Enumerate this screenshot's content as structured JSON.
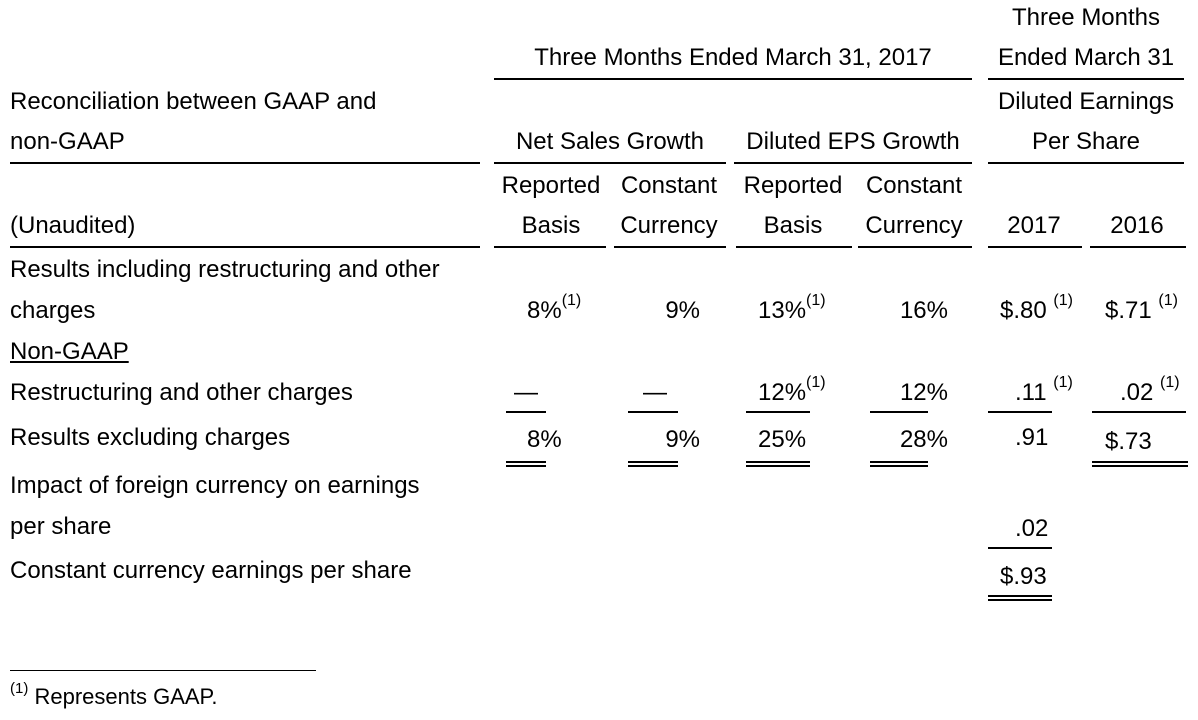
{
  "header": {
    "three_months_ended_2017": "Three Months Ended March 31, 2017",
    "three_months_line1": "Three Months",
    "three_months_line2": "Ended March 31",
    "title_line1": "Reconciliation between GAAP and",
    "title_line2": "non-GAAP",
    "net_sales_growth": "Net Sales Growth",
    "diluted_eps_growth": "Diluted EPS Growth",
    "diluted_eps_line1": "Diluted Earnings",
    "diluted_eps_line2": "Per Share",
    "unaudited": "(Unaudited)",
    "reported_line1": "Reported",
    "reported_line2": "Basis",
    "constant_line1": "Constant",
    "constant_line2": "Currency",
    "year_2017": "2017",
    "year_2016": "2016"
  },
  "rows": {
    "incl_label_line1": "Results including restructuring and other",
    "incl_label_line2": "charges",
    "incl_ns_reported": "8%",
    "incl_ns_constant": "9%",
    "incl_eps_reported": "13%",
    "incl_eps_constant": "16%",
    "incl_2017": "$.80",
    "incl_2016": "$.71",
    "non_gaap_label": "Non-GAAP",
    "restr_label": "Restructuring and other charges",
    "restr_ns_reported": "—",
    "restr_ns_constant": "—",
    "restr_eps_reported": "12%",
    "restr_eps_constant": "12%",
    "restr_2017": ".11",
    "restr_2016": ".02",
    "excl_label": "Results excluding charges",
    "excl_ns_reported": "8%",
    "excl_ns_constant": "9%",
    "excl_eps_reported": "25%",
    "excl_eps_constant": "28%",
    "excl_2017": ".91",
    "excl_2016": "$.73",
    "fx_label_line1": "Impact of foreign currency on earnings",
    "fx_label_line2": "per share",
    "fx_2017": ".02",
    "cc_label": "Constant currency earnings per share",
    "cc_2017": "$.93"
  },
  "footnote": {
    "marker": "(1)",
    "text": "Represents GAAP."
  }
}
